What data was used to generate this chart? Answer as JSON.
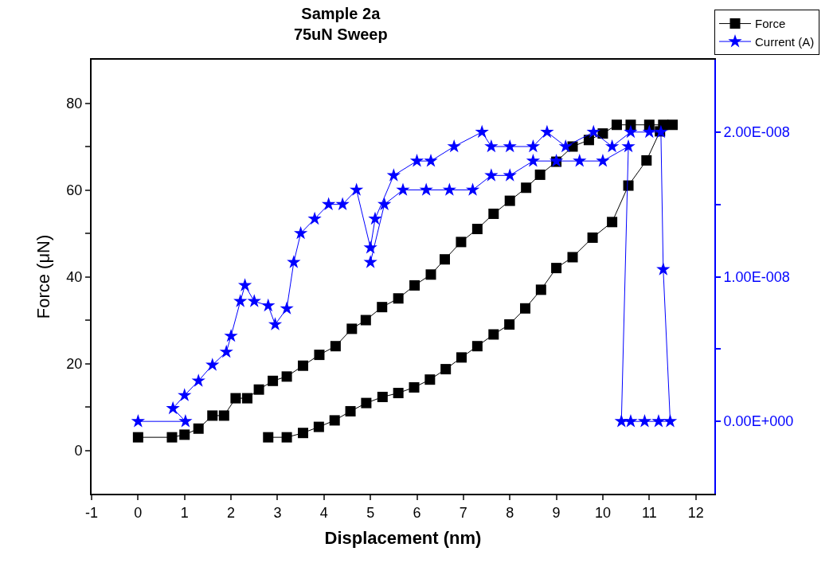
{
  "chart_data": {
    "type": "line",
    "title": "Sample 2a\n75uN Sweep",
    "xlabel": "Displacement (nm)",
    "ylabel": "Force (μN)",
    "xlim": [
      -1,
      12.4
    ],
    "xticks": [
      -1,
      0,
      1,
      2,
      3,
      4,
      5,
      6,
      7,
      8,
      9,
      10,
      11,
      12
    ],
    "ylim": [
      -10,
      90
    ],
    "yticks": [
      0,
      {
        "value": 10,
        "label": null
      },
      20,
      {
        "value": 30,
        "label": null
      },
      40,
      {
        "value": 50,
        "label": null
      },
      60,
      {
        "value": 70,
        "label": null
      },
      80
    ],
    "y2lim": [
      -5e-09,
      2.5e-08
    ],
    "y2ticks": [
      {
        "value": 0,
        "label": "0.00E+000"
      },
      {
        "value": 5e-09,
        "label": null
      },
      {
        "value": 1e-08,
        "label": "1.00E-008"
      },
      {
        "value": 1.5e-08,
        "label": null
      },
      {
        "value": 2e-08,
        "label": "2.00E-008"
      }
    ],
    "legend": "top right",
    "line_style": "solid",
    "series": [
      {
        "name": "Force",
        "color": "#000000",
        "marker": "square",
        "x": [
          0,
          0.73,
          1,
          1.3,
          1.6,
          1.85,
          2.1,
          2.35,
          2.6,
          2.9,
          3.2,
          3.55,
          3.9,
          4.25,
          4.6,
          4.9,
          5.25,
          5.6,
          5.95,
          6.3,
          6.6,
          6.95,
          7.3,
          7.65,
          8,
          8.35,
          8.65,
          9,
          9.35,
          9.7,
          10,
          10.3,
          10.6,
          11,
          11.3,
          11.5,
          11.23,
          10.94,
          10.55,
          10.2,
          9.78,
          9.35,
          9,
          8.67,
          8.33,
          7.99,
          7.65,
          7.3,
          6.96,
          6.62,
          6.28,
          5.94,
          5.6,
          5.26,
          4.91,
          4.57,
          4.23,
          3.89,
          3.55,
          3.2,
          2.8
        ],
        "values": [
          3,
          3,
          3.6,
          5,
          8,
          8,
          12,
          12,
          14,
          16,
          17,
          19.5,
          22,
          24,
          28,
          30,
          33,
          35,
          38,
          40.5,
          44,
          48,
          51,
          54.5,
          57.5,
          60.5,
          63.5,
          66.5,
          70,
          71.5,
          73,
          75,
          75,
          75,
          75,
          75,
          73.5,
          66.8,
          61,
          52.6,
          49,
          44.5,
          42,
          37,
          32.7,
          29,
          26.7,
          24,
          21.4,
          18.7,
          16.3,
          14.5,
          13.2,
          12.3,
          10.9,
          9,
          6.9,
          5.4,
          4,
          3,
          3
        ]
      },
      {
        "name": "Current (A)",
        "color": "#0000ff",
        "marker": "star",
        "axis": "y2",
        "x": [
          0,
          1.02,
          0.75,
          1.0,
          1.3,
          1.6,
          1.9,
          2.0,
          2.2,
          2.3,
          2.5,
          2.8,
          2.95,
          3.2,
          3.35,
          3.5,
          3.8,
          4.1,
          4.4,
          4.7,
          5.0,
          5.1,
          5.5,
          6.0,
          6.3,
          6.8,
          7.4,
          7.6,
          8.0,
          8.5,
          8.8,
          9.2,
          9.8,
          10.2,
          10.6,
          11.0,
          11.25,
          11.3,
          11.45,
          11.2,
          10.9,
          10.6,
          10.4,
          10.55,
          10.0,
          9.5,
          9.0,
          8.5,
          8.0,
          7.6,
          7.2,
          6.7,
          6.2,
          5.7,
          5.3,
          5.0
        ],
        "values": [
          0,
          0,
          9e-10,
          1.8e-09,
          2.8e-09,
          3.9e-09,
          4.8e-09,
          5.9e-09,
          8.3e-09,
          9.4e-09,
          8.3e-09,
          8e-09,
          6.7e-09,
          7.8e-09,
          1.1e-08,
          1.3e-08,
          1.4e-08,
          1.5e-08,
          1.5e-08,
          1.6e-08,
          1.2e-08,
          1.4e-08,
          1.7e-08,
          1.8e-08,
          1.8e-08,
          1.9e-08,
          2e-08,
          1.9e-08,
          1.9e-08,
          1.9e-08,
          2e-08,
          1.9e-08,
          2e-08,
          1.9e-08,
          2e-08,
          2e-08,
          2e-08,
          1.05e-08,
          0,
          0,
          0,
          0,
          0,
          1.9e-08,
          1.8e-08,
          1.8e-08,
          1.8e-08,
          1.8e-08,
          1.7e-08,
          1.7e-08,
          1.6e-08,
          1.6e-08,
          1.6e-08,
          1.6e-08,
          1.5e-08,
          1.1e-08
        ]
      }
    ]
  }
}
